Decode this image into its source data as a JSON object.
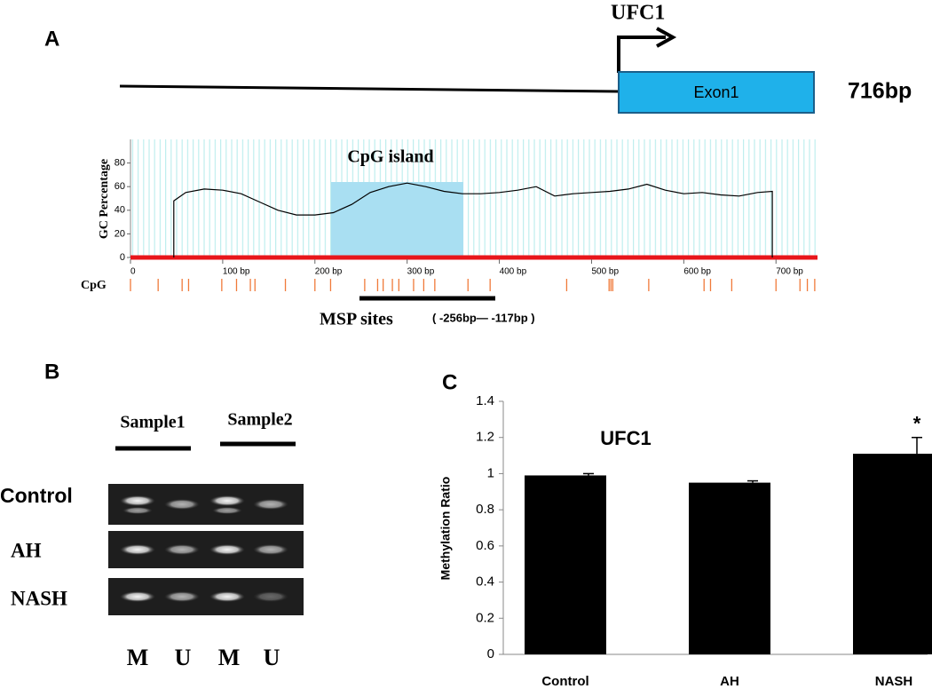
{
  "panel_a": {
    "label": "A",
    "gene": "UFC1",
    "exon": "Exon1",
    "length": "716bp",
    "msp_label": "MSP sites",
    "msp_range": "( -256bp— -117bp )"
  },
  "panel_b": {
    "label": "B",
    "samples": [
      "Sample1",
      "Sample2"
    ],
    "rows": [
      "Control",
      "AH",
      "NASH"
    ],
    "lanes": [
      "M",
      "U",
      "M",
      "U"
    ]
  },
  "panel_c": {
    "label": "C"
  },
  "chart_data": [
    {
      "type": "line",
      "y_label": "GC Percentage",
      "annotation": "CpG island",
      "color": "#000000",
      "x": [
        47,
        47,
        60,
        80,
        100,
        120,
        140,
        160,
        180,
        200,
        220,
        240,
        260,
        280,
        300,
        320,
        340,
        360,
        380,
        400,
        420,
        440,
        460,
        480,
        500,
        520,
        540,
        560,
        580,
        600,
        620,
        640,
        660,
        680,
        696,
        696
      ],
      "values": [
        0,
        48,
        55,
        58,
        57,
        54,
        47,
        40,
        36,
        36,
        38,
        45,
        55,
        60,
        63,
        60,
        56,
        54,
        54,
        55,
        57,
        60,
        52,
        54,
        55,
        56,
        58,
        62,
        57,
        54,
        55,
        53,
        52,
        55,
        56,
        0
      ],
      "xlim": [
        0,
        745
      ],
      "ylim": [
        0,
        100
      ],
      "xticks": [
        0,
        {
          "value": 100,
          "label": "100 bp"
        },
        {
          "value": 200,
          "label": "200 bp"
        },
        {
          "value": 300,
          "label": "300 bp"
        },
        {
          "value": 400,
          "label": "400 bp"
        },
        {
          "value": 500,
          "label": "500 bp"
        },
        {
          "value": 600,
          "label": "600 bp"
        },
        {
          "value": 700,
          "label": "700 bp"
        }
      ],
      "yticks": [
        0,
        20,
        40,
        60,
        80
      ],
      "cpg_label": "CpG",
      "cpg_color": "#f07a3a",
      "cpg_positions": [
        0,
        30,
        56,
        63,
        99,
        115,
        130,
        135,
        168,
        200,
        217,
        254,
        268,
        274,
        284,
        291,
        307,
        318,
        330,
        366,
        390,
        473,
        519,
        521,
        523,
        562,
        622,
        629,
        652,
        700,
        726,
        734,
        742
      ]
    },
    {
      "type": "bar",
      "title": "UFC1",
      "y_label": "Methylation Ratio",
      "color": "#000000",
      "categories": [
        "Control",
        "AH",
        "NASH"
      ],
      "values": [
        0.99,
        0.95,
        1.11
      ],
      "errors": [
        0.01,
        0.01,
        0.09
      ],
      "annotations": [
        null,
        null,
        "*"
      ],
      "ylim": [
        0,
        1.4
      ],
      "yticks": [
        0,
        0.2,
        0.4,
        0.6,
        0.8,
        1,
        1.2,
        1.4
      ]
    }
  ]
}
